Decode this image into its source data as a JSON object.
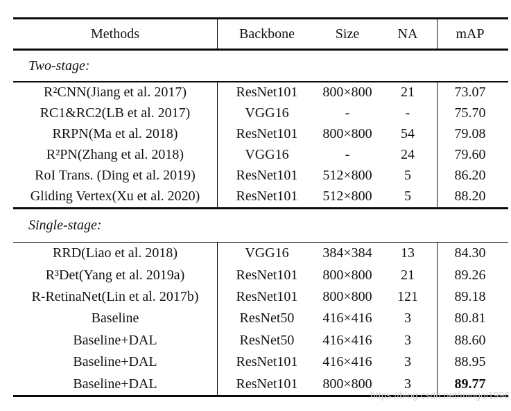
{
  "table": {
    "columns": [
      "Methods",
      "Backbone",
      "Size",
      "NA",
      "mAP"
    ],
    "sections": [
      {
        "label": "Two-stage:",
        "rows": [
          [
            "R²CNN(Jiang et al. 2017)",
            "ResNet101",
            "800×800",
            "21",
            "73.07"
          ],
          [
            "RC1&RC2(LB et al. 2017)",
            "VGG16",
            "-",
            "-",
            "75.70"
          ],
          [
            "RRPN(Ma et al. 2018)",
            "ResNet101",
            "800×800",
            "54",
            "79.08"
          ],
          [
            "R²PN(Zhang et al. 2018)",
            "VGG16",
            "-",
            "24",
            "79.60"
          ],
          [
            "RoI Trans. (Ding et al. 2019)",
            "ResNet101",
            "512×800",
            "5",
            "86.20"
          ],
          [
            "Gliding Vertex(Xu et al. 2020)",
            "ResNet101",
            "512×800",
            "5",
            "88.20"
          ]
        ]
      },
      {
        "label": "Single-stage:",
        "rows": [
          [
            "RRD(Liao et al. 2018)",
            "VGG16",
            "384×384",
            "13",
            "84.30"
          ],
          [
            "R³Det(Yang et al. 2019a)",
            "ResNet101",
            "800×800",
            "21",
            "89.26"
          ],
          [
            "R-RetinaNet(Lin et al. 2017b)",
            "ResNet101",
            "800×800",
            "121",
            "89.18"
          ],
          [
            "Baseline",
            "ResNet50",
            "416×416",
            "3",
            "80.81"
          ],
          [
            "Baseline+DAL",
            "ResNet50",
            "416×416",
            "3",
            "88.60"
          ],
          [
            "Baseline+DAL",
            "ResNet101",
            "416×416",
            "3",
            "88.95"
          ],
          [
            "Baseline+DAL",
            "ResNet101",
            "800×800",
            "3",
            "89.77"
          ]
        ]
      }
    ]
  },
  "watermark": {
    "text": "https://blog.csdn.net/mingqi1996"
  }
}
